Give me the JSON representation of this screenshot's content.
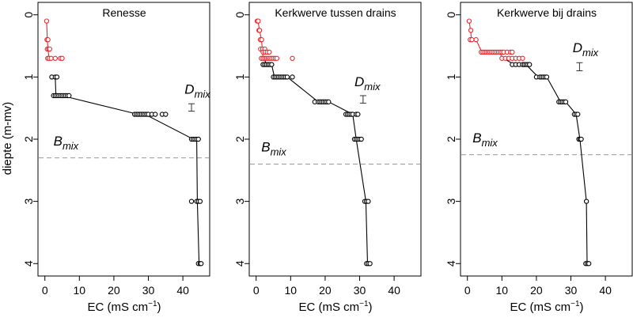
{
  "figure": {
    "ylabel": "diepte (m-mv)",
    "xlabel_main": "EC (mS cm",
    "xlabel_exp": "−1",
    "xlabel_close": ")",
    "d_label_main": "D",
    "d_label_sub": "mix",
    "b_label_main": "B",
    "b_label_sub": "mix"
  },
  "colors": {
    "surface": "#e8262b",
    "deep": "#000000",
    "bmix_line": "#999999",
    "frame": "#000000"
  },
  "chart_data": [
    {
      "type": "scatter",
      "title": "Renesse",
      "xlim": [
        -2,
        48
      ],
      "ylim": [
        4.2,
        -0.2
      ],
      "xticks": [
        0,
        10,
        20,
        30,
        40
      ],
      "yticks": [
        0,
        1,
        2,
        3,
        4
      ],
      "xlabel": "EC (mS cm-1)",
      "ylabel": "diepte (m-mv)",
      "surface_points": [
        [
          0.5,
          0.1
        ],
        [
          0.6,
          0.4
        ],
        [
          0.9,
          0.4
        ],
        [
          0.7,
          0.55
        ],
        [
          1.1,
          0.55
        ],
        [
          1.4,
          0.55
        ],
        [
          0.8,
          0.7
        ],
        [
          1.2,
          0.7
        ],
        [
          1.8,
          0.7
        ],
        [
          3,
          0.7
        ],
        [
          4.5,
          0.7
        ],
        [
          5,
          0.7
        ]
      ],
      "surface_line": [
        [
          0.5,
          0.1
        ],
        [
          0.7,
          0.4
        ],
        [
          0.9,
          0.55
        ],
        [
          1.2,
          0.7
        ]
      ],
      "deep_points": [
        [
          2,
          1
        ],
        [
          3,
          1
        ],
        [
          3.5,
          1
        ],
        [
          2.5,
          1.3
        ],
        [
          3,
          1.3
        ],
        [
          3.5,
          1.3
        ],
        [
          4,
          1.3
        ],
        [
          4.5,
          1.3
        ],
        [
          5,
          1.3
        ],
        [
          5.5,
          1.3
        ],
        [
          6,
          1.3
        ],
        [
          6.5,
          1.3
        ],
        [
          7,
          1.3
        ],
        [
          26,
          1.6
        ],
        [
          26.5,
          1.6
        ],
        [
          27,
          1.6
        ],
        [
          27.5,
          1.6
        ],
        [
          28,
          1.6
        ],
        [
          28.5,
          1.6
        ],
        [
          29,
          1.6
        ],
        [
          29.5,
          1.6
        ],
        [
          30,
          1.6
        ],
        [
          31,
          1.6
        ],
        [
          32,
          1.6
        ],
        [
          34,
          1.6
        ],
        [
          35,
          1.6
        ],
        [
          42.5,
          2
        ],
        [
          43,
          2
        ],
        [
          43.5,
          2
        ],
        [
          44,
          2
        ],
        [
          44.5,
          2
        ],
        [
          42.5,
          3
        ],
        [
          44,
          3
        ],
        [
          44.5,
          3
        ],
        [
          45,
          3
        ],
        [
          44.5,
          4
        ],
        [
          45,
          4
        ],
        [
          45.3,
          4
        ]
      ],
      "deep_line": [
        [
          3,
          1
        ],
        [
          3.2,
          1.3
        ],
        [
          5,
          1.3
        ],
        [
          27,
          1.6
        ],
        [
          29,
          1.6
        ],
        [
          43,
          2
        ],
        [
          44,
          2
        ],
        [
          44.2,
          3
        ],
        [
          44.7,
          4
        ]
      ],
      "dmix": {
        "x": 42.5,
        "y_low": 1.43,
        "y_high": 1.55
      },
      "bmix": 2.3,
      "d_label_at": [
        40.5,
        1.27
      ],
      "b_label_at": [
        2.5,
        2.1
      ]
    },
    {
      "type": "scatter",
      "title": "Kerkwerve tussen drains",
      "xlim": [
        -2,
        48
      ],
      "ylim": [
        4.2,
        -0.2
      ],
      "xticks": [
        0,
        10,
        20,
        30,
        40
      ],
      "yticks": [
        0,
        1,
        2,
        3,
        4
      ],
      "xlabel": "EC (mS cm-1)",
      "ylabel": "diepte (m-mv)",
      "surface_points": [
        [
          0.3,
          0.1
        ],
        [
          0.6,
          0.1
        ],
        [
          0.8,
          0.25
        ],
        [
          1,
          0.25
        ],
        [
          1.2,
          0.4
        ],
        [
          1.6,
          0.4
        ],
        [
          1.3,
          0.55
        ],
        [
          1.9,
          0.55
        ],
        [
          2.5,
          0.55
        ],
        [
          2,
          0.6
        ],
        [
          2.6,
          0.6
        ],
        [
          3.2,
          0.6
        ],
        [
          3.8,
          0.6
        ],
        [
          1.5,
          0.7
        ],
        [
          2,
          0.7
        ],
        [
          2.5,
          0.7
        ],
        [
          3,
          0.7
        ],
        [
          3.5,
          0.7
        ],
        [
          4,
          0.7
        ],
        [
          4.5,
          0.7
        ],
        [
          5,
          0.7
        ],
        [
          5.5,
          0.7
        ],
        [
          6,
          0.7
        ],
        [
          10.5,
          0.7
        ]
      ],
      "surface_line": [
        [
          0.5,
          0.1
        ],
        [
          1,
          0.25
        ],
        [
          1.5,
          0.4
        ],
        [
          1.8,
          0.55
        ],
        [
          2,
          0.7
        ]
      ],
      "deep_points": [
        [
          2,
          0.8
        ],
        [
          2.5,
          0.8
        ],
        [
          3,
          0.8
        ],
        [
          3.5,
          0.8
        ],
        [
          4,
          0.8
        ],
        [
          4.5,
          0.8
        ],
        [
          5,
          1
        ],
        [
          5.5,
          1
        ],
        [
          6,
          1
        ],
        [
          6.5,
          1
        ],
        [
          7,
          1
        ],
        [
          7.5,
          1
        ],
        [
          8,
          1
        ],
        [
          8.5,
          1
        ],
        [
          9,
          1
        ],
        [
          10.5,
          1
        ],
        [
          17,
          1.4
        ],
        [
          18,
          1.4
        ],
        [
          18.5,
          1.4
        ],
        [
          19,
          1.4
        ],
        [
          19.5,
          1.4
        ],
        [
          20,
          1.4
        ],
        [
          20.5,
          1.4
        ],
        [
          21,
          1.4
        ],
        [
          26,
          1.6
        ],
        [
          26.5,
          1.6
        ],
        [
          27,
          1.6
        ],
        [
          27.5,
          1.6
        ],
        [
          28,
          1.6
        ],
        [
          29,
          1.6
        ],
        [
          29.5,
          1.6
        ],
        [
          28.5,
          2
        ],
        [
          29,
          2
        ],
        [
          29.5,
          2
        ],
        [
          30,
          2
        ],
        [
          30.5,
          2
        ],
        [
          31.5,
          3
        ],
        [
          32,
          3
        ],
        [
          32.5,
          3
        ],
        [
          32,
          4
        ],
        [
          32.5,
          4
        ],
        [
          33,
          4
        ]
      ],
      "deep_line": [
        [
          2.3,
          0.7
        ],
        [
          3,
          0.8
        ],
        [
          4.5,
          0.8
        ],
        [
          5.3,
          1
        ],
        [
          9,
          1
        ],
        [
          18,
          1.4
        ],
        [
          21,
          1.4
        ],
        [
          28,
          1.6
        ],
        [
          29,
          2
        ],
        [
          31.8,
          3
        ],
        [
          32.3,
          4
        ]
      ],
      "dmix": {
        "x": 31,
        "y_low": 1.3,
        "y_high": 1.42
      },
      "bmix": 2.4,
      "d_label_at": [
        28.5,
        1.15
      ],
      "b_label_at": [
        1.5,
        2.2
      ]
    },
    {
      "type": "scatter",
      "title": "Kerkwerve bij drains",
      "xlim": [
        -2,
        48
      ],
      "ylim": [
        4.2,
        -0.2
      ],
      "xticks": [
        0,
        10,
        20,
        30,
        40
      ],
      "yticks": [
        0,
        1,
        2,
        3,
        4
      ],
      "xlabel": "EC (mS cm-1)",
      "ylabel": "diepte (m-mv)",
      "surface_points": [
        [
          0.5,
          0.1
        ],
        [
          1,
          0.25
        ],
        [
          0.8,
          0.4
        ],
        [
          1.3,
          0.4
        ],
        [
          2.5,
          0.4
        ],
        [
          4,
          0.6
        ],
        [
          4.5,
          0.6
        ],
        [
          5,
          0.6
        ],
        [
          5.5,
          0.6
        ],
        [
          6,
          0.6
        ],
        [
          6.5,
          0.6
        ],
        [
          7,
          0.6
        ],
        [
          7.5,
          0.6
        ],
        [
          8,
          0.6
        ],
        [
          8.5,
          0.6
        ],
        [
          9,
          0.6
        ],
        [
          9.5,
          0.6
        ],
        [
          10,
          0.6
        ],
        [
          10.5,
          0.6
        ],
        [
          11.5,
          0.6
        ],
        [
          12.5,
          0.6
        ],
        [
          13,
          0.6
        ],
        [
          10,
          0.7
        ],
        [
          11,
          0.7
        ],
        [
          12,
          0.7
        ],
        [
          13,
          0.7
        ],
        [
          14,
          0.7
        ],
        [
          15,
          0.7
        ],
        [
          16,
          0.7
        ]
      ],
      "surface_line": [
        [
          0.5,
          0.1
        ],
        [
          0.9,
          0.25
        ],
        [
          1.2,
          0.4
        ],
        [
          2.5,
          0.4
        ],
        [
          4.2,
          0.6
        ],
        [
          9,
          0.6
        ],
        [
          10.5,
          0.7
        ]
      ],
      "deep_points": [
        [
          13,
          0.8
        ],
        [
          14,
          0.8
        ],
        [
          15,
          0.8
        ],
        [
          16,
          0.8
        ],
        [
          16.5,
          0.8
        ],
        [
          17,
          0.8
        ],
        [
          17.5,
          0.8
        ],
        [
          18,
          0.8
        ],
        [
          20,
          1
        ],
        [
          21,
          1
        ],
        [
          21.5,
          1
        ],
        [
          22,
          1
        ],
        [
          22.5,
          1
        ],
        [
          23,
          1
        ],
        [
          26.5,
          1.4
        ],
        [
          27,
          1.4
        ],
        [
          27.5,
          1.4
        ],
        [
          28,
          1.4
        ],
        [
          28.5,
          1.4
        ],
        [
          31,
          1.6
        ],
        [
          31.5,
          1.6
        ],
        [
          32,
          1.6
        ],
        [
          32.3,
          2
        ],
        [
          32.7,
          2
        ],
        [
          33,
          2
        ],
        [
          34.5,
          3
        ],
        [
          34.3,
          4
        ],
        [
          34.8,
          4
        ],
        [
          35.2,
          4
        ]
      ],
      "deep_line": [
        [
          10.5,
          0.7
        ],
        [
          13.5,
          0.8
        ],
        [
          17,
          0.8
        ],
        [
          20.5,
          1
        ],
        [
          23,
          1
        ],
        [
          27,
          1.4
        ],
        [
          28.5,
          1.4
        ],
        [
          31.5,
          1.6
        ],
        [
          32.6,
          2
        ],
        [
          34.5,
          3
        ],
        [
          34.7,
          4
        ]
      ],
      "dmix": {
        "x": 32.5,
        "y_low": 0.77,
        "y_high": 0.9
      },
      "bmix": 2.25,
      "d_label_at": [
        30.5,
        0.6
      ],
      "b_label_at": [
        1.5,
        2.05
      ]
    }
  ]
}
